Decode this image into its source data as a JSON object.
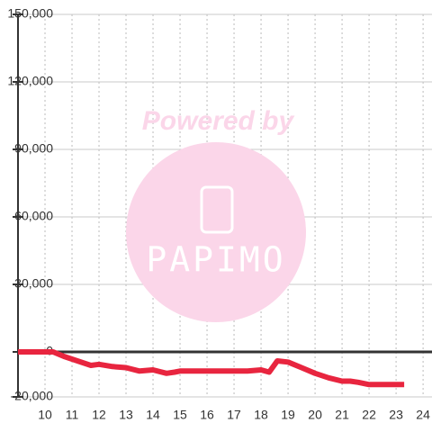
{
  "chart_data": {
    "type": "line",
    "x": [
      9,
      10.3,
      10.7,
      11.2,
      11.7,
      12,
      12.5,
      13,
      13.5,
      14,
      14.5,
      14.8,
      15,
      17,
      17.5,
      18,
      18.3,
      18.6,
      19,
      19.5,
      20,
      20.5,
      21,
      21.3,
      21.6,
      22,
      23.3
    ],
    "values": [
      0,
      0,
      -2000,
      -4000,
      -6000,
      -5500,
      -6500,
      -7000,
      -8500,
      -8000,
      -9500,
      -9000,
      -8500,
      -8500,
      -8500,
      -8000,
      -9000,
      -4000,
      -4500,
      -7000,
      -9500,
      -11500,
      -13000,
      -13000,
      -13500,
      -14500,
      -14500
    ],
    "color": "#e8253f",
    "xlim": [
      9,
      24.33
    ],
    "xticks": [
      10,
      11,
      12,
      13,
      14,
      15,
      16,
      17,
      18,
      19,
      20,
      21,
      22,
      23,
      24
    ],
    "ylim": [
      -20000,
      150000
    ],
    "yticks": [
      {
        "value": -20000,
        "label": "-20,000"
      },
      0,
      {
        "value": 30000,
        "label": "30,000"
      },
      {
        "value": 60000,
        "label": "60,000"
      },
      {
        "value": 90000,
        "label": "90,000"
      },
      {
        "value": 120000,
        "label": "120,000"
      },
      {
        "value": 150000,
        "label": "150,000"
      }
    ],
    "grid": true,
    "annotations": [
      "Powered by",
      "PAPIMO"
    ]
  }
}
